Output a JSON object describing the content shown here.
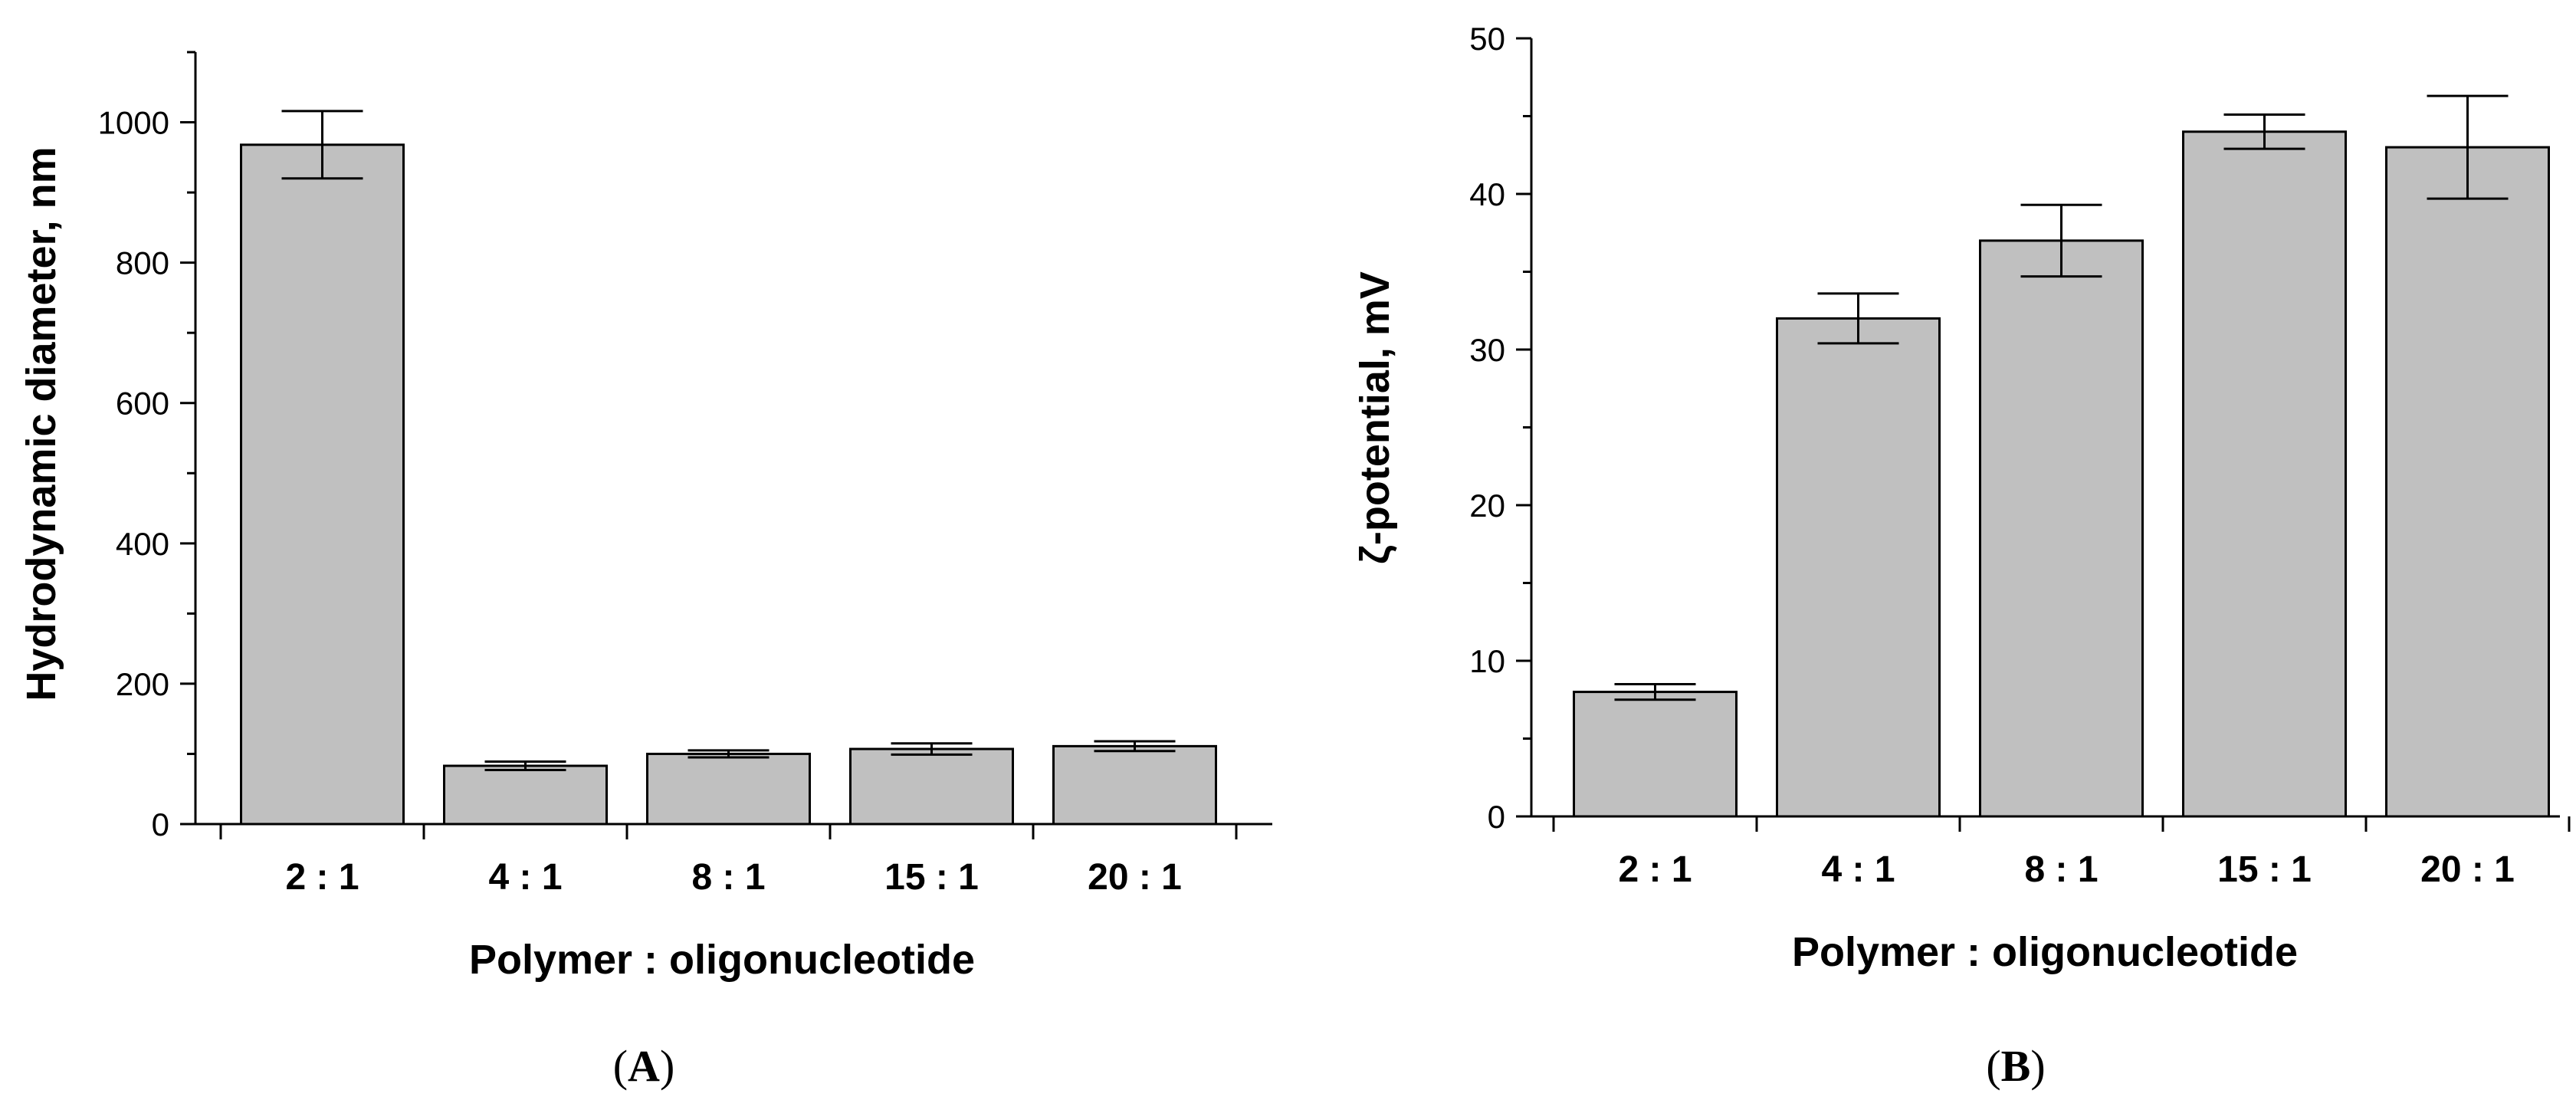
{
  "chart_data": [
    {
      "type": "bar",
      "panel_label": {
        "open": "(",
        "letter": "A",
        "close": ")"
      },
      "categories": [
        "2 : 1",
        "4 : 1",
        "8 : 1",
        "15 : 1",
        "20 : 1"
      ],
      "values": [
        968,
        83,
        100,
        107,
        111
      ],
      "errors": [
        48,
        6,
        5,
        8,
        7
      ],
      "xlabel": "Polymer : oligonucleotide",
      "ylabel": "Hydrodynamic diameter, nm",
      "ylim": [
        0,
        1100
      ],
      "yticks": [
        0,
        200,
        400,
        600,
        800,
        1000
      ],
      "yminor_step": 100,
      "bar_color": "#c0c0c0",
      "edge_color": "#000000"
    },
    {
      "type": "bar",
      "panel_label": {
        "open": "(",
        "letter": "B",
        "close": ")"
      },
      "categories": [
        "2 : 1",
        "4 : 1",
        "8 : 1",
        "15 : 1",
        "20 : 1"
      ],
      "values": [
        8,
        32,
        37,
        44,
        43
      ],
      "errors": [
        0.5,
        1.6,
        2.3,
        1.1,
        3.3
      ],
      "xlabel": "Polymer : oligonucleotide",
      "ylabel": "ζ-potential, mV",
      "ylim": [
        0,
        50
      ],
      "yticks": [
        0,
        10,
        20,
        30,
        40,
        50
      ],
      "yminor_step": 5,
      "bar_color": "#c0c0c0",
      "edge_color": "#000000"
    }
  ]
}
